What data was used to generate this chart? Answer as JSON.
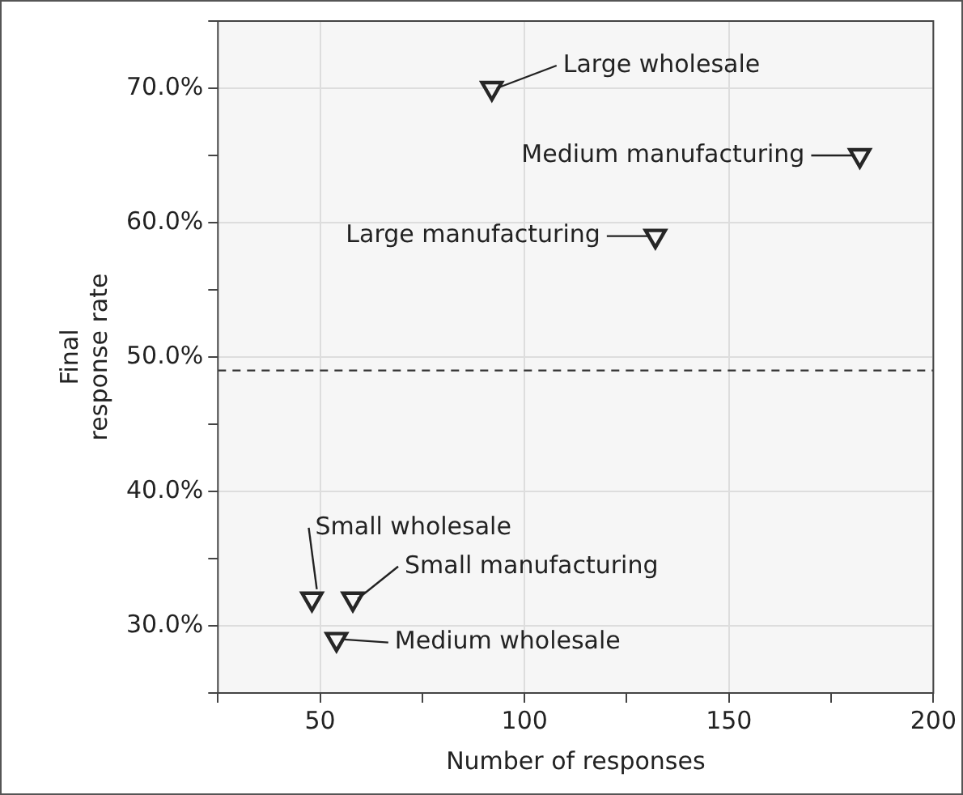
{
  "chart_data": {
    "type": "scatter",
    "xlabel": "Number of responses",
    "ylabel": "Final response rate",
    "x": [
      92,
      182,
      132,
      48,
      58,
      54
    ],
    "series": [
      {
        "color": "#262626",
        "values": [
          70,
          65,
          59,
          32,
          32,
          29
        ]
      }
    ],
    "marker": "triangle",
    "xlim": [
      25,
      200
    ],
    "xticks": [
      {
        "value": 25,
        "label": null
      },
      50,
      {
        "value": 75,
        "label": null
      },
      100,
      {
        "value": 125,
        "label": null
      },
      150,
      {
        "value": 175,
        "label": null
      },
      200
    ],
    "ylim": [
      25,
      75
    ],
    "yticks": [
      {
        "value": 25,
        "label": null
      },
      {
        "value": 30,
        "label": "30.0%"
      },
      {
        "value": 35,
        "label": null
      },
      {
        "value": 40,
        "label": "40.0%"
      },
      {
        "value": 45,
        "label": null
      },
      {
        "value": 50,
        "label": "50.0%"
      },
      {
        "value": 55,
        "label": null
      },
      {
        "value": 60,
        "label": "60.0%"
      },
      {
        "value": 65,
        "label": null
      },
      {
        "value": 70,
        "label": "70.0%"
      },
      {
        "value": 75,
        "label": null
      }
    ],
    "grid": true,
    "legend": false,
    "ref_lines": [
      {
        "axis": "y",
        "value": 49,
        "line_style": "dashed",
        "color": "#333333"
      }
    ],
    "annotations": [
      {
        "text": "Large wholesale",
        "x": 92,
        "y": 70
      },
      {
        "text": "Medium manufacturing",
        "x": 182,
        "y": 65
      },
      {
        "text": "Large manufacturing",
        "x": 132,
        "y": 59
      },
      {
        "text": "Small wholesale",
        "x": 48,
        "y": 32
      },
      {
        "text": "Small manufacturing",
        "x": 58,
        "y": 32
      },
      {
        "text": "Medium wholesale",
        "x": 54,
        "y": 29
      }
    ]
  }
}
